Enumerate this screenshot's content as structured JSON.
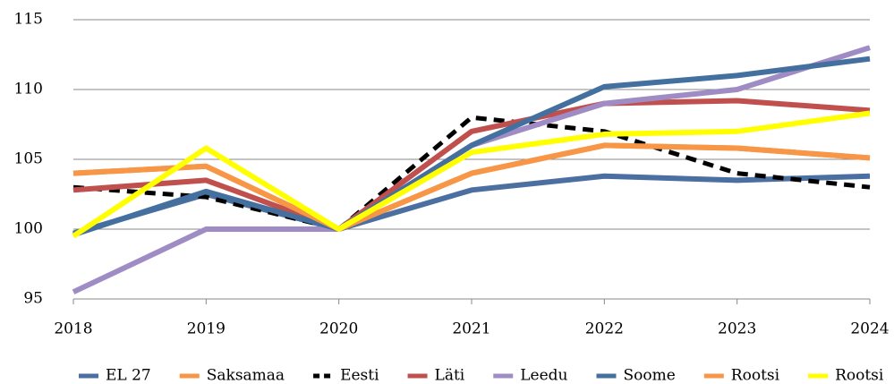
{
  "chart_data": {
    "type": "line",
    "categories": [
      "2018",
      "2019",
      "2020",
      "2021",
      "2022",
      "2023",
      "2024"
    ],
    "ylim": [
      95,
      115
    ],
    "yticks": [
      95,
      100,
      105,
      110,
      115
    ],
    "grid": true,
    "series": [
      {
        "name": "EL 27",
        "color": "#4a6fa0",
        "values": [
          99.7,
          102.5,
          100,
          102.8,
          103.8,
          103.5,
          103.8
        ]
      },
      {
        "name": "Saksamaa",
        "color": "#f79646",
        "values": [
          104,
          104.5,
          100,
          104,
          106,
          105.8,
          105.1
        ]
      },
      {
        "name": "Eesti",
        "color": "#000000",
        "dashed": true,
        "values": [
          103,
          102.3,
          100,
          108,
          107,
          104,
          103
        ]
      },
      {
        "name": "Läti",
        "color": "#c0504d",
        "values": [
          102.8,
          103.5,
          100,
          107,
          109,
          109.2,
          108.5
        ]
      },
      {
        "name": "Leedu",
        "color": "#a08cc4",
        "values": [
          95.5,
          100,
          100,
          106,
          109,
          110,
          113
        ]
      },
      {
        "name": "Soome",
        "color": "#44709f",
        "values": [
          99.6,
          102.7,
          100,
          106,
          110.2,
          111,
          112.2
        ]
      },
      {
        "name": "Rootsi",
        "color": "#f79646",
        "values": [
          104,
          104.5,
          100,
          104,
          106,
          105.8,
          105.1
        ]
      },
      {
        "name": "Rootsi",
        "color": "#ffff00",
        "values": [
          99.5,
          105.8,
          100,
          105.5,
          106.8,
          107,
          108.3
        ]
      }
    ]
  }
}
